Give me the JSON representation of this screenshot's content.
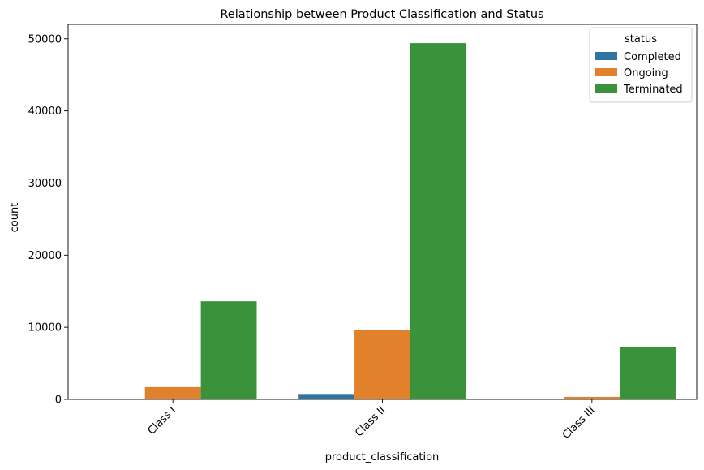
{
  "chart_data": {
    "type": "bar",
    "title": "Relationship between Product Classification and Status",
    "xlabel": "product_classification",
    "ylabel": "count",
    "categories": [
      "Class I",
      "Class II",
      "Class III"
    ],
    "series": [
      {
        "name": "Completed",
        "color": "#3274a1",
        "values": [
          80,
          750,
          0
        ]
      },
      {
        "name": "Ongoing",
        "color": "#e1812c",
        "values": [
          1700,
          9650,
          350
        ]
      },
      {
        "name": "Terminated",
        "color": "#3a923a",
        "values": [
          13600,
          49400,
          7300
        ]
      }
    ],
    "ylim": [
      0,
      52000
    ],
    "yticks": [
      0,
      10000,
      20000,
      30000,
      40000,
      50000
    ],
    "ytick_labels": [
      "0",
      "10000",
      "20000",
      "30000",
      "40000",
      "50000"
    ],
    "legend": {
      "title": "status",
      "placement": "top-right"
    },
    "grid": false
  }
}
